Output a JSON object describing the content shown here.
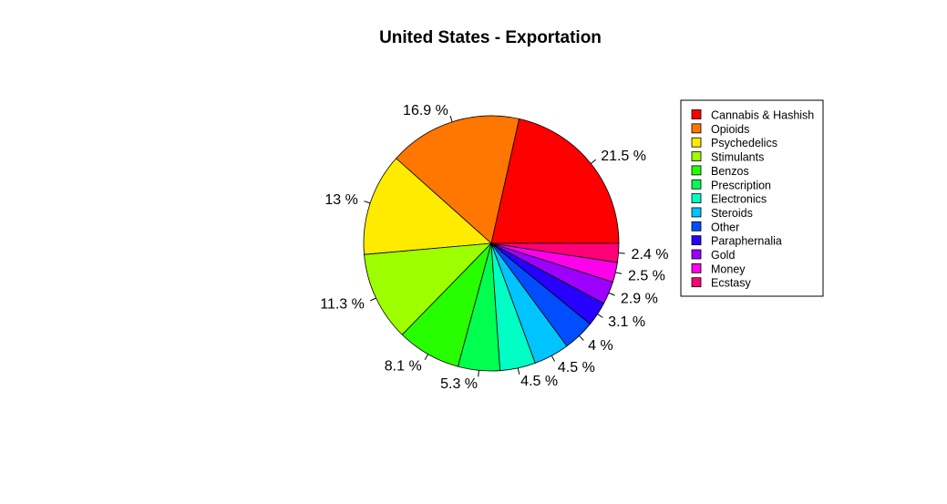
{
  "chart_data": {
    "type": "pie",
    "title": "United States - Exportation",
    "legend_position": "right",
    "slices": [
      {
        "name": "Cannabis & Hashish",
        "value": 21.5,
        "label": "21.5 %",
        "color": "#FF0000"
      },
      {
        "name": "Opioids",
        "value": 16.9,
        "label": "16.9 %",
        "color": "#FF7600"
      },
      {
        "name": "Psychedelics",
        "value": 13.0,
        "label": "13 %",
        "color": "#FFEB00"
      },
      {
        "name": "Stimulants",
        "value": 11.3,
        "label": "11.3 %",
        "color": "#9DFF00"
      },
      {
        "name": "Benzos",
        "value": 8.1,
        "label": "8.1 %",
        "color": "#27FF00"
      },
      {
        "name": "Prescription",
        "value": 5.3,
        "label": "5.3 %",
        "color": "#00FF4E"
      },
      {
        "name": "Electronics",
        "value": 4.5,
        "label": "4.5 %",
        "color": "#00FFC4"
      },
      {
        "name": "Steroids",
        "value": 4.5,
        "label": "4.5 %",
        "color": "#00C4FF"
      },
      {
        "name": "Other",
        "value": 4.0,
        "label": "4 %",
        "color": "#004EFF"
      },
      {
        "name": "Paraphernalia",
        "value": 3.1,
        "label": "3.1 %",
        "color": "#2700FF"
      },
      {
        "name": "Gold",
        "value": 2.9,
        "label": "2.9 %",
        "color": "#9D00FF"
      },
      {
        "name": "Money",
        "value": 2.5,
        "label": "2.5 %",
        "color": "#FF00EB"
      },
      {
        "name": "Ecstasy",
        "value": 2.4,
        "label": "2.4 %",
        "color": "#FF0076"
      }
    ]
  }
}
